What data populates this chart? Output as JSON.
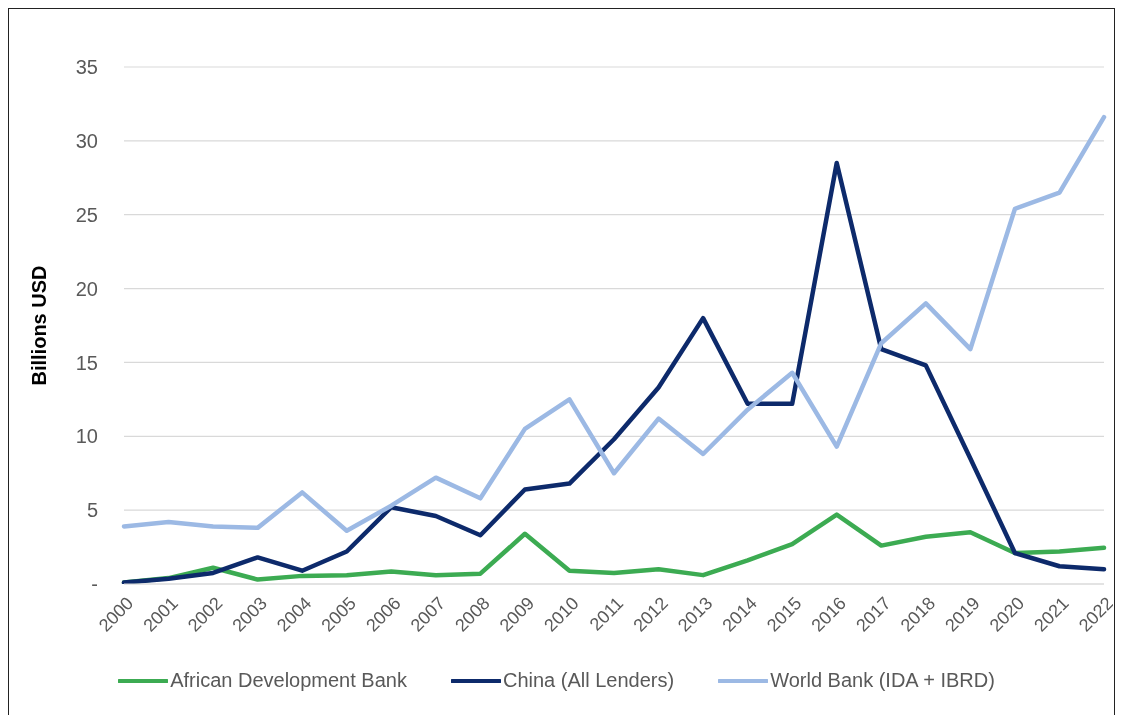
{
  "chart_data": {
    "type": "line",
    "ylabel": "Billions USD",
    "categories": [
      "2000",
      "2001",
      "2002",
      "2003",
      "2004",
      "2005",
      "2006",
      "2007",
      "2008",
      "2009",
      "2010",
      "2011",
      "2012",
      "2013",
      "2014",
      "2015",
      "2016",
      "2017",
      "2018",
      "2019",
      "2020",
      "2021",
      "2022"
    ],
    "series": [
      {
        "name": "African Development Bank",
        "color": "#3cab52",
        "values": [
          0.1,
          0.4,
          1.1,
          0.3,
          0.55,
          0.6,
          0.85,
          0.6,
          0.7,
          3.4,
          0.9,
          0.75,
          1.0,
          0.6,
          1.6,
          2.7,
          4.7,
          2.6,
          3.2,
          3.5,
          2.1,
          2.2,
          2.45
        ]
      },
      {
        "name": "China (All Lenders)",
        "color": "#0d2a6b",
        "values": [
          0.1,
          0.35,
          0.75,
          1.8,
          0.9,
          2.2,
          5.2,
          4.6,
          3.3,
          6.4,
          6.8,
          9.8,
          13.3,
          18.0,
          12.2,
          12.2,
          28.5,
          15.9,
          14.8,
          8.5,
          2.1,
          1.2,
          1.0
        ]
      },
      {
        "name": "World Bank (IDA + IBRD)",
        "color": "#9cb9e4",
        "values": [
          3.9,
          4.2,
          3.9,
          3.8,
          6.2,
          3.6,
          5.3,
          7.2,
          5.8,
          10.5,
          12.5,
          7.5,
          11.2,
          8.8,
          11.8,
          14.3,
          9.3,
          16.3,
          19.0,
          15.9,
          25.4,
          26.5,
          31.6
        ]
      }
    ],
    "ylim": [
      0,
      35
    ],
    "yticks": [
      {
        "value": 0,
        "label": "-"
      },
      5,
      10,
      15,
      20,
      25,
      30,
      35
    ],
    "grid": "y",
    "legend": "bottom"
  }
}
